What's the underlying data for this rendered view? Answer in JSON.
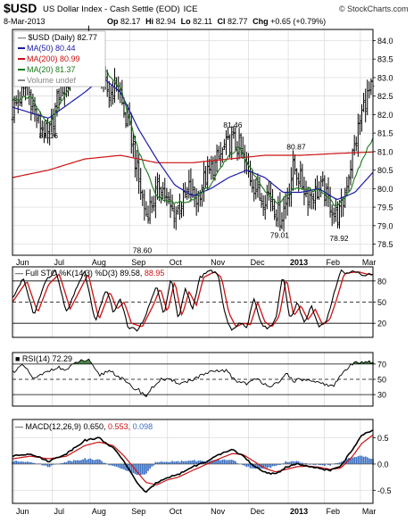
{
  "header": {
    "symbol": "$USD",
    "description": "US Dollar Index - Cash Settle (EOD)",
    "exchange": "ICE",
    "date": "8-Mar-2013",
    "ohlc": {
      "open_label": "Op",
      "open": "82.17",
      "high_label": "Hi",
      "high": "82.94",
      "low_label": "Lo",
      "low": "82.11",
      "close_label": "Cl",
      "close": "82.77",
      "change_label": "Chg",
      "change": "+0.65 (+0.79%)"
    },
    "watermark": "© StockCharts.com"
  },
  "colors": {
    "price_bar": "#000000",
    "ma50": "#1a1aa6",
    "ma200": "#cc1111",
    "ma20": "#1a7a1a",
    "sto_k": "#000000",
    "sto_d": "#cc1111",
    "rsi": "#000000",
    "rsi_fill_over": "#4a8a4a",
    "rsi_fill_under": "#a05555",
    "macd": "#000000",
    "signal": "#cc1111",
    "hist": "#3a6fc4",
    "grid": "#d8d8d8",
    "axis": "#000000"
  },
  "chart_data": [
    {
      "type": "line",
      "panel": "price",
      "title": "$USD (Daily) 82.77",
      "legend": [
        {
          "name": "MA(50)",
          "value": "80.44",
          "color": "#1a1aa6"
        },
        {
          "name": "MA(200)",
          "value": "80.99",
          "color": "#cc1111"
        },
        {
          "name": "MA(20)",
          "value": "81.37",
          "color": "#1a7a1a"
        },
        {
          "name": "Volume undef",
          "value": "",
          "color": "#888888"
        }
      ],
      "ylim": [
        78.2,
        84.3
      ],
      "yticks": [
        78.5,
        79.0,
        79.5,
        80.0,
        80.5,
        81.0,
        81.5,
        82.0,
        82.5,
        83.0,
        83.5,
        84.0
      ],
      "x_labels": [
        "Jun",
        "Jul",
        "Aug",
        "Sep",
        "Oct",
        "Nov",
        "Dec",
        "2013",
        "Feb",
        "Mar"
      ],
      "annotations": [
        {
          "text": "81.16",
          "t": 0.1,
          "v": 81.16
        },
        {
          "text": "78.60",
          "t": 0.36,
          "v": 78.6
        },
        {
          "text": "81.46",
          "t": 0.611,
          "v": 81.46
        },
        {
          "text": "79.01",
          "t": 0.741,
          "v": 79.01
        },
        {
          "text": "80.87",
          "t": 0.787,
          "v": 80.87
        },
        {
          "text": "78.92",
          "t": 0.906,
          "v": 78.92
        }
      ],
      "close_anchors": [
        [
          0,
          82.1
        ],
        [
          0.04,
          82.8
        ],
        [
          0.07,
          81.8
        ],
        [
          0.1,
          81.4
        ],
        [
          0.13,
          82.6
        ],
        [
          0.16,
          83.2
        ],
        [
          0.19,
          83.6
        ],
        [
          0.21,
          84.0
        ],
        [
          0.23,
          83.4
        ],
        [
          0.25,
          82.9
        ],
        [
          0.27,
          82.5
        ],
        [
          0.29,
          82.9
        ],
        [
          0.31,
          82.0
        ],
        [
          0.33,
          81.4
        ],
        [
          0.35,
          80.2
        ],
        [
          0.37,
          79.3
        ],
        [
          0.39,
          79.7
        ],
        [
          0.41,
          80.2
        ],
        [
          0.43,
          79.6
        ],
        [
          0.45,
          79.3
        ],
        [
          0.47,
          79.6
        ],
        [
          0.49,
          80.0
        ],
        [
          0.51,
          79.7
        ],
        [
          0.53,
          80.2
        ],
        [
          0.55,
          80.5
        ],
        [
          0.57,
          80.8
        ],
        [
          0.59,
          81.1
        ],
        [
          0.61,
          81.3
        ],
        [
          0.63,
          81.1
        ],
        [
          0.65,
          80.5
        ],
        [
          0.67,
          80.1
        ],
        [
          0.69,
          79.7
        ],
        [
          0.71,
          79.9
        ],
        [
          0.73,
          79.4
        ],
        [
          0.745,
          79.2
        ],
        [
          0.76,
          79.7
        ],
        [
          0.78,
          80.6
        ],
        [
          0.8,
          80.2
        ],
        [
          0.82,
          79.8
        ],
        [
          0.84,
          79.9
        ],
        [
          0.86,
          80.0
        ],
        [
          0.88,
          79.6
        ],
        [
          0.9,
          79.2
        ],
        [
          0.915,
          79.5
        ],
        [
          0.93,
          80.3
        ],
        [
          0.95,
          81.2
        ],
        [
          0.97,
          82.1
        ],
        [
          0.985,
          82.5
        ],
        [
          1.0,
          82.77
        ]
      ],
      "ma50_anchors": [
        [
          0,
          82.2
        ],
        [
          0.1,
          81.9
        ],
        [
          0.2,
          82.6
        ],
        [
          0.25,
          83.0
        ],
        [
          0.3,
          82.6
        ],
        [
          0.35,
          81.6
        ],
        [
          0.4,
          80.8
        ],
        [
          0.45,
          80.1
        ],
        [
          0.5,
          79.8
        ],
        [
          0.55,
          80.0
        ],
        [
          0.6,
          80.3
        ],
        [
          0.65,
          80.5
        ],
        [
          0.7,
          80.3
        ],
        [
          0.75,
          79.9
        ],
        [
          0.8,
          79.9
        ],
        [
          0.85,
          80.0
        ],
        [
          0.9,
          79.7
        ],
        [
          0.95,
          79.9
        ],
        [
          1.0,
          80.44
        ]
      ],
      "ma200_anchors": [
        [
          0,
          80.3
        ],
        [
          0.1,
          80.5
        ],
        [
          0.2,
          80.8
        ],
        [
          0.3,
          80.9
        ],
        [
          0.4,
          80.7
        ],
        [
          0.5,
          80.7
        ],
        [
          0.6,
          80.8
        ],
        [
          0.7,
          80.9
        ],
        [
          0.8,
          80.9
        ],
        [
          0.9,
          80.95
        ],
        [
          1.0,
          80.99
        ]
      ],
      "ma20_anchors": [
        [
          0,
          82.4
        ],
        [
          0.05,
          82.5
        ],
        [
          0.1,
          81.7
        ],
        [
          0.15,
          82.6
        ],
        [
          0.2,
          83.5
        ],
        [
          0.25,
          83.3
        ],
        [
          0.3,
          82.7
        ],
        [
          0.35,
          81.0
        ],
        [
          0.4,
          79.8
        ],
        [
          0.45,
          79.6
        ],
        [
          0.5,
          79.7
        ],
        [
          0.55,
          80.1
        ],
        [
          0.6,
          80.9
        ],
        [
          0.63,
          81.1
        ],
        [
          0.67,
          80.4
        ],
        [
          0.7,
          79.9
        ],
        [
          0.74,
          79.6
        ],
        [
          0.78,
          80.0
        ],
        [
          0.82,
          80.0
        ],
        [
          0.86,
          79.9
        ],
        [
          0.9,
          79.5
        ],
        [
          0.94,
          80.0
        ],
        [
          0.97,
          80.8
        ],
        [
          1.0,
          81.37
        ]
      ]
    },
    {
      "type": "line",
      "panel": "sto",
      "title": "Full STO %K(14,3) %D(3) 89.58, 88.95",
      "k_label": "Full STO %K(14,3) %D(3) 89.58,",
      "d_value": "88.95",
      "ylim": [
        0,
        100
      ],
      "yticks": [
        20,
        50,
        80
      ],
      "k_anchors": [
        [
          0,
          55
        ],
        [
          0.03,
          85
        ],
        [
          0.06,
          30
        ],
        [
          0.09,
          80
        ],
        [
          0.12,
          95
        ],
        [
          0.15,
          35
        ],
        [
          0.17,
          60
        ],
        [
          0.2,
          95
        ],
        [
          0.23,
          20
        ],
        [
          0.26,
          70
        ],
        [
          0.28,
          35
        ],
        [
          0.3,
          55
        ],
        [
          0.32,
          15
        ],
        [
          0.35,
          10
        ],
        [
          0.38,
          45
        ],
        [
          0.4,
          75
        ],
        [
          0.42,
          30
        ],
        [
          0.44,
          85
        ],
        [
          0.46,
          25
        ],
        [
          0.48,
          70
        ],
        [
          0.5,
          40
        ],
        [
          0.52,
          85
        ],
        [
          0.55,
          95
        ],
        [
          0.57,
          90
        ],
        [
          0.59,
          30
        ],
        [
          0.61,
          10
        ],
        [
          0.63,
          20
        ],
        [
          0.65,
          15
        ],
        [
          0.67,
          55
        ],
        [
          0.69,
          20
        ],
        [
          0.71,
          12
        ],
        [
          0.73,
          25
        ],
        [
          0.75,
          90
        ],
        [
          0.77,
          25
        ],
        [
          0.79,
          50
        ],
        [
          0.81,
          20
        ],
        [
          0.83,
          45
        ],
        [
          0.85,
          15
        ],
        [
          0.87,
          20
        ],
        [
          0.89,
          60
        ],
        [
          0.91,
          95
        ],
        [
          0.93,
          90
        ],
        [
          0.95,
          95
        ],
        [
          0.97,
          88
        ],
        [
          1.0,
          89.58
        ]
      ],
      "d_anchors": [
        [
          0,
          50
        ],
        [
          0.04,
          80
        ],
        [
          0.07,
          35
        ],
        [
          0.1,
          75
        ],
        [
          0.13,
          90
        ],
        [
          0.16,
          40
        ],
        [
          0.18,
          60
        ],
        [
          0.21,
          90
        ],
        [
          0.24,
          25
        ],
        [
          0.27,
          65
        ],
        [
          0.29,
          40
        ],
        [
          0.31,
          50
        ],
        [
          0.33,
          20
        ],
        [
          0.36,
          15
        ],
        [
          0.39,
          45
        ],
        [
          0.41,
          70
        ],
        [
          0.43,
          35
        ],
        [
          0.45,
          80
        ],
        [
          0.47,
          30
        ],
        [
          0.49,
          65
        ],
        [
          0.51,
          45
        ],
        [
          0.53,
          85
        ],
        [
          0.56,
          93
        ],
        [
          0.58,
          85
        ],
        [
          0.6,
          35
        ],
        [
          0.62,
          15
        ],
        [
          0.64,
          20
        ],
        [
          0.66,
          18
        ],
        [
          0.68,
          50
        ],
        [
          0.7,
          22
        ],
        [
          0.72,
          15
        ],
        [
          0.74,
          30
        ],
        [
          0.76,
          85
        ],
        [
          0.78,
          30
        ],
        [
          0.8,
          45
        ],
        [
          0.82,
          25
        ],
        [
          0.84,
          40
        ],
        [
          0.86,
          18
        ],
        [
          0.88,
          25
        ],
        [
          0.9,
          55
        ],
        [
          0.92,
          90
        ],
        [
          0.94,
          92
        ],
        [
          0.96,
          93
        ],
        [
          0.98,
          90
        ],
        [
          1.0,
          88.95
        ]
      ]
    },
    {
      "type": "line",
      "panel": "rsi",
      "title": "RSI(14) 72.29",
      "ylim": [
        15,
        85
      ],
      "yticks": [
        30,
        50,
        70
      ],
      "rsi_anchors": [
        [
          0,
          60
        ],
        [
          0.03,
          68
        ],
        [
          0.06,
          50
        ],
        [
          0.09,
          58
        ],
        [
          0.12,
          66
        ],
        [
          0.15,
          62
        ],
        [
          0.18,
          73
        ],
        [
          0.21,
          75
        ],
        [
          0.24,
          55
        ],
        [
          0.27,
          62
        ],
        [
          0.3,
          52
        ],
        [
          0.33,
          40
        ],
        [
          0.35,
          36
        ],
        [
          0.37,
          28
        ],
        [
          0.39,
          40
        ],
        [
          0.41,
          50
        ],
        [
          0.44,
          48
        ],
        [
          0.47,
          45
        ],
        [
          0.5,
          50
        ],
        [
          0.53,
          56
        ],
        [
          0.56,
          60
        ],
        [
          0.59,
          62
        ],
        [
          0.62,
          48
        ],
        [
          0.65,
          45
        ],
        [
          0.68,
          50
        ],
        [
          0.71,
          42
        ],
        [
          0.74,
          44
        ],
        [
          0.76,
          58
        ],
        [
          0.78,
          48
        ],
        [
          0.81,
          50
        ],
        [
          0.84,
          45
        ],
        [
          0.87,
          44
        ],
        [
          0.89,
          40
        ],
        [
          0.91,
          55
        ],
        [
          0.93,
          65
        ],
        [
          0.95,
          72
        ],
        [
          0.97,
          74
        ],
        [
          1.0,
          72.29
        ]
      ]
    },
    {
      "type": "line",
      "panel": "macd",
      "title": "MACD(12,26,9) 0.650, 0.553, 0.098",
      "macd_label": "MACD(12,26,9) 0.650,",
      "signal_value": "0.553",
      "hist_value": "0.098",
      "ylim": [
        -0.75,
        0.85
      ],
      "yticks": [
        -0.5,
        0.0,
        0.5
      ],
      "macd_anchors": [
        [
          0,
          0.15
        ],
        [
          0.05,
          0.2
        ],
        [
          0.1,
          0.05
        ],
        [
          0.15,
          0.2
        ],
        [
          0.2,
          0.45
        ],
        [
          0.24,
          0.5
        ],
        [
          0.28,
          0.3
        ],
        [
          0.31,
          0.05
        ],
        [
          0.34,
          -0.3
        ],
        [
          0.37,
          -0.55
        ],
        [
          0.4,
          -0.35
        ],
        [
          0.43,
          -0.25
        ],
        [
          0.46,
          -0.2
        ],
        [
          0.5,
          -0.05
        ],
        [
          0.54,
          0.05
        ],
        [
          0.58,
          0.2
        ],
        [
          0.61,
          0.28
        ],
        [
          0.64,
          0.15
        ],
        [
          0.67,
          -0.05
        ],
        [
          0.7,
          -0.15
        ],
        [
          0.73,
          -0.2
        ],
        [
          0.76,
          -0.05
        ],
        [
          0.79,
          0.0
        ],
        [
          0.82,
          -0.05
        ],
        [
          0.85,
          -0.08
        ],
        [
          0.88,
          -0.12
        ],
        [
          0.91,
          -0.05
        ],
        [
          0.94,
          0.25
        ],
        [
          0.97,
          0.55
        ],
        [
          1.0,
          0.65
        ]
      ],
      "signal_anchors": [
        [
          0,
          0.1
        ],
        [
          0.05,
          0.15
        ],
        [
          0.1,
          0.1
        ],
        [
          0.15,
          0.15
        ],
        [
          0.2,
          0.35
        ],
        [
          0.24,
          0.42
        ],
        [
          0.28,
          0.35
        ],
        [
          0.31,
          0.15
        ],
        [
          0.34,
          -0.1
        ],
        [
          0.37,
          -0.35
        ],
        [
          0.4,
          -0.4
        ],
        [
          0.43,
          -0.3
        ],
        [
          0.46,
          -0.25
        ],
        [
          0.5,
          -0.12
        ],
        [
          0.54,
          0.0
        ],
        [
          0.58,
          0.12
        ],
        [
          0.61,
          0.2
        ],
        [
          0.64,
          0.18
        ],
        [
          0.67,
          0.05
        ],
        [
          0.7,
          -0.08
        ],
        [
          0.73,
          -0.15
        ],
        [
          0.76,
          -0.1
        ],
        [
          0.79,
          -0.05
        ],
        [
          0.82,
          -0.04
        ],
        [
          0.85,
          -0.06
        ],
        [
          0.88,
          -0.1
        ],
        [
          0.91,
          -0.08
        ],
        [
          0.94,
          0.12
        ],
        [
          0.97,
          0.4
        ],
        [
          1.0,
          0.553
        ]
      ]
    }
  ]
}
